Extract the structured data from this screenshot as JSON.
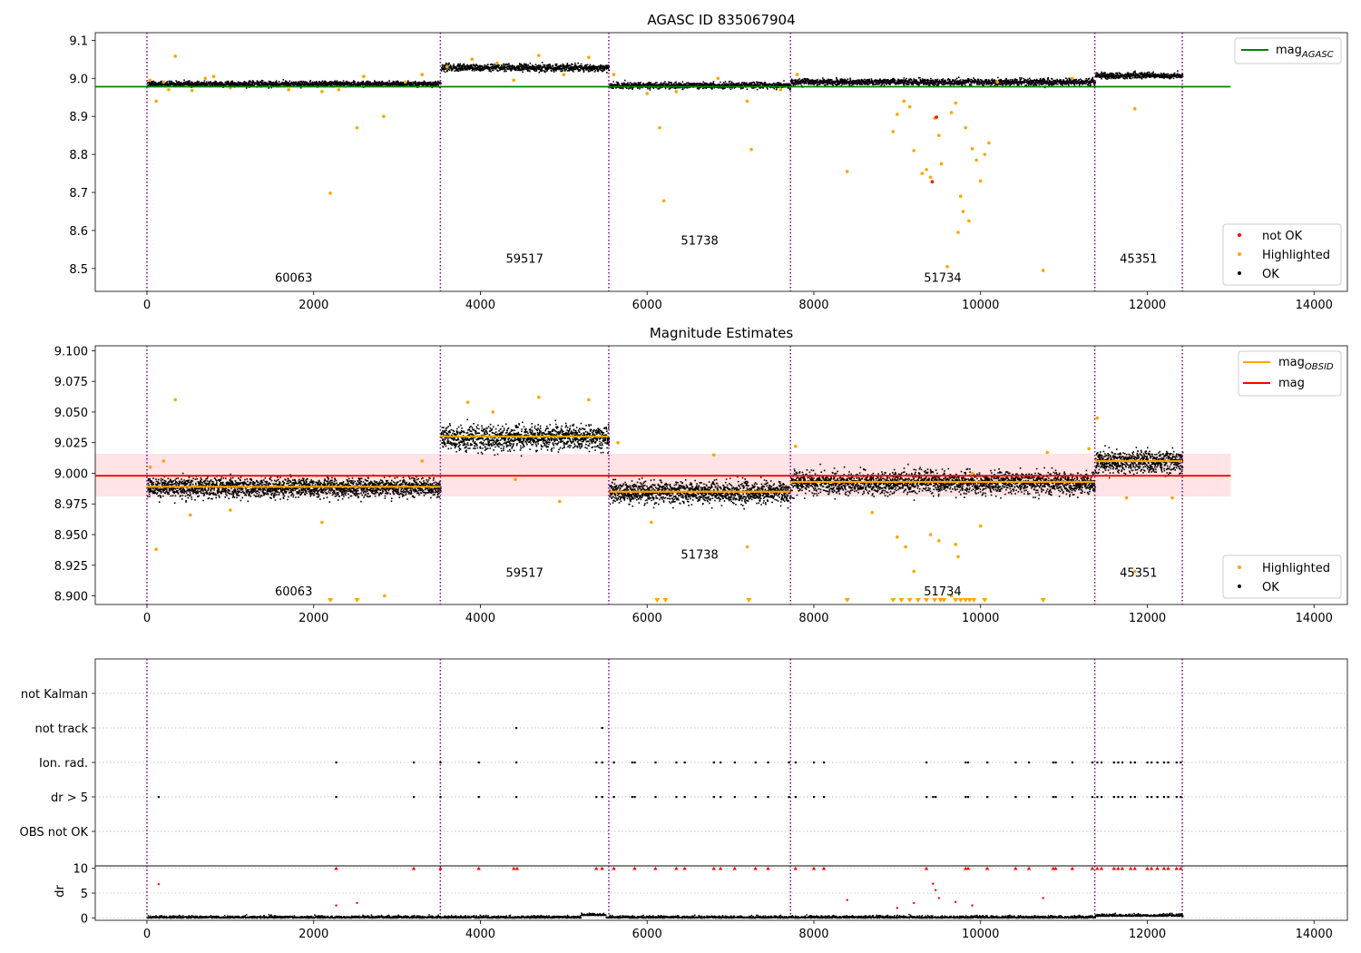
{
  "chart_data": [
    {
      "type": "scatter",
      "title": "AGASC ID 835067904",
      "xlim": [
        -620,
        14400
      ],
      "ylim": [
        8.44,
        9.12
      ],
      "xticks": [
        0,
        2000,
        4000,
        6000,
        8000,
        10000,
        12000,
        14000
      ],
      "yticks": [
        8.5,
        8.6,
        8.7,
        8.8,
        8.9,
        9.0,
        9.1
      ],
      "colors": {
        "ok": "#000000",
        "highlighted": "#ffa500",
        "not_ok": "#ff0000",
        "mag_agasc": "#008000",
        "boundary": "#800080"
      },
      "mag_agasc": 8.978,
      "mag_agasc_x": [
        -620,
        13000
      ],
      "legend_top": [
        {
          "label": "mag",
          "sub": "AGASC",
          "color": "#008000",
          "kind": "line"
        }
      ],
      "legend_bottom": [
        {
          "label": "not OK",
          "color": "#ff0000",
          "kind": "dot"
        },
        {
          "label": "Highlighted",
          "color": "#ffa500",
          "kind": "dot"
        },
        {
          "label": "OK",
          "color": "#000000",
          "kind": "dot"
        }
      ],
      "obsids": [
        {
          "label": "60063",
          "x0": 0,
          "x1": 3520,
          "mean": 8.987,
          "spread": 0.006,
          "label_y": 8.465
        },
        {
          "label": "59517",
          "x0": 3520,
          "x1": 5540,
          "mean": 9.03,
          "spread": 0.008,
          "label_y": 8.515
        },
        {
          "label": "51738",
          "x0": 5540,
          "x1": 7720,
          "mean": 8.983,
          "spread": 0.007,
          "label_y": 8.563
        },
        {
          "label": "51734",
          "x0": 7720,
          "x1": 11370,
          "mean": 8.992,
          "spread": 0.007,
          "label_y": 8.465
        },
        {
          "label": "45351",
          "x0": 11370,
          "x1": 12420,
          "mean": 9.009,
          "spread": 0.006,
          "label_y": 8.515
        }
      ],
      "boundaries": [
        0,
        3520,
        5540,
        7720,
        11370,
        12420
      ],
      "highlighted_points": [
        [
          35,
          8.995
        ],
        [
          110,
          8.94
        ],
        [
          200,
          8.99
        ],
        [
          260,
          8.97
        ],
        [
          340,
          9.058
        ],
        [
          540,
          8.968
        ],
        [
          700,
          9.0
        ],
        [
          800,
          9.005
        ],
        [
          1000,
          8.975
        ],
        [
          1700,
          8.97
        ],
        [
          2100,
          8.965
        ],
        [
          2200,
          8.698
        ],
        [
          2300,
          8.97
        ],
        [
          2520,
          8.87
        ],
        [
          2600,
          9.005
        ],
        [
          2840,
          8.9
        ],
        [
          3100,
          8.99
        ],
        [
          3300,
          9.01
        ],
        [
          3600,
          9.03
        ],
        [
          3900,
          9.05
        ],
        [
          4200,
          9.04
        ],
        [
          4400,
          8.995
        ],
        [
          4700,
          9.06
        ],
        [
          5000,
          9.01
        ],
        [
          5300,
          9.055
        ],
        [
          5600,
          9.01
        ],
        [
          6000,
          8.96
        ],
        [
          6150,
          8.87
        ],
        [
          6200,
          8.678
        ],
        [
          6350,
          8.965
        ],
        [
          6850,
          9.0
        ],
        [
          7200,
          8.94
        ],
        [
          7250,
          8.813
        ],
        [
          7600,
          8.97
        ],
        [
          7800,
          9.01
        ],
        [
          8400,
          8.755
        ],
        [
          8950,
          8.86
        ],
        [
          9000,
          8.905
        ],
        [
          9080,
          8.94
        ],
        [
          9150,
          8.925
        ],
        [
          9200,
          8.81
        ],
        [
          9300,
          8.75
        ],
        [
          9350,
          8.76
        ],
        [
          9400,
          8.74
        ],
        [
          9450,
          8.895
        ],
        [
          9500,
          8.85
        ],
        [
          9530,
          8.775
        ],
        [
          9600,
          8.505
        ],
        [
          9650,
          8.91
        ],
        [
          9700,
          8.935
        ],
        [
          9730,
          8.595
        ],
        [
          9760,
          8.69
        ],
        [
          9790,
          8.65
        ],
        [
          9820,
          8.87
        ],
        [
          9860,
          8.625
        ],
        [
          9900,
          8.815
        ],
        [
          9950,
          8.785
        ],
        [
          10000,
          8.73
        ],
        [
          10050,
          8.8
        ],
        [
          10100,
          8.83
        ],
        [
          10200,
          8.99
        ],
        [
          10750,
          8.495
        ],
        [
          11100,
          9.0
        ],
        [
          11850,
          8.92
        ]
      ],
      "not_ok_points": [
        [
          9420,
          8.728
        ],
        [
          9470,
          8.898
        ]
      ]
    },
    {
      "type": "scatter",
      "title": "Magnitude Estimates",
      "xlim": [
        -620,
        14400
      ],
      "ylim": [
        8.893,
        9.104
      ],
      "xticks": [
        0,
        2000,
        4000,
        6000,
        8000,
        10000,
        12000,
        14000
      ],
      "yticks": [
        8.9,
        8.925,
        8.95,
        8.975,
        9.0,
        9.025,
        9.05,
        9.075,
        9.1
      ],
      "ytick_labels": [
        "8.900",
        "8.925",
        "8.950",
        "8.975",
        "9.000",
        "9.025",
        "9.050",
        "9.075",
        "9.100"
      ],
      "mag": 8.998,
      "mag_band": [
        8.981,
        9.016
      ],
      "mag_x": [
        -620,
        13000
      ],
      "colors": {
        "mag": "#ff0000",
        "mag_obsid": "#ffa500",
        "band": "#ffc0c8",
        "ok": "#000000",
        "highlighted": "#ffa500"
      },
      "legend_top": [
        {
          "label": "mag",
          "sub": "OBSID",
          "color": "#ffa500",
          "kind": "line"
        },
        {
          "label": "mag",
          "sub": "",
          "color": "#ff0000",
          "kind": "line"
        }
      ],
      "legend_bottom": [
        {
          "label": "Highlighted",
          "color": "#ffa500",
          "kind": "dot"
        },
        {
          "label": "OK",
          "color": "#000000",
          "kind": "dot"
        }
      ],
      "obsids": [
        {
          "label": "60063",
          "x0": 0,
          "x1": 3520,
          "mean": 8.989,
          "spread": 0.0065,
          "label_y": 8.9005
        },
        {
          "label": "59517",
          "x0": 3520,
          "x1": 5540,
          "mean": 9.03,
          "spread": 0.0085,
          "label_y": 8.9155
        },
        {
          "label": "51738",
          "x0": 5540,
          "x1": 7720,
          "mean": 8.985,
          "spread": 0.0075,
          "label_y": 8.9305
        },
        {
          "label": "51734",
          "x0": 7720,
          "x1": 11370,
          "mean": 8.993,
          "spread": 0.0075,
          "label_y": 8.9005
        },
        {
          "label": "45351",
          "x0": 11370,
          "x1": 12420,
          "mean": 9.01,
          "spread": 0.0075,
          "label_y": 8.9155
        }
      ],
      "boundaries": [
        0,
        3520,
        5540,
        7720,
        11370,
        12420
      ],
      "highlighted_points": [
        [
          40,
          9.005
        ],
        [
          110,
          8.938
        ],
        [
          200,
          9.01
        ],
        [
          340,
          9.06
        ],
        [
          520,
          8.966
        ],
        [
          1000,
          8.97
        ],
        [
          2100,
          8.96
        ],
        [
          2850,
          8.9
        ],
        [
          3300,
          9.01
        ],
        [
          3850,
          9.058
        ],
        [
          4150,
          9.05
        ],
        [
          4420,
          8.995
        ],
        [
          4700,
          9.062
        ],
        [
          4950,
          8.977
        ],
        [
          5300,
          9.06
        ],
        [
          5650,
          9.025
        ],
        [
          6050,
          8.96
        ],
        [
          6800,
          9.015
        ],
        [
          7200,
          8.94
        ],
        [
          7780,
          9.022
        ],
        [
          8700,
          8.968
        ],
        [
          9000,
          8.948
        ],
        [
          9100,
          8.94
        ],
        [
          9200,
          8.92
        ],
        [
          9400,
          8.95
        ],
        [
          9500,
          8.945
        ],
        [
          9650,
          8.9
        ],
        [
          9700,
          8.942
        ],
        [
          9730,
          8.932
        ],
        [
          9900,
          9.0
        ],
        [
          10000,
          8.957
        ],
        [
          10800,
          9.017
        ],
        [
          11300,
          9.02
        ],
        [
          11400,
          9.045
        ],
        [
          11750,
          8.98
        ],
        [
          11850,
          8.92
        ],
        [
          12300,
          8.98
        ]
      ],
      "low_markers": [
        2200,
        2520,
        6120,
        6220,
        7220,
        8400,
        8950,
        9050,
        9150,
        9250,
        9350,
        9450,
        9520,
        9560,
        9700,
        9760,
        9820,
        9870,
        9920,
        10050,
        10750
      ]
    },
    {
      "type": "scatter",
      "categories": [
        "not Kalman",
        "not track",
        "Ion. rad.",
        "dr > 5",
        "OBS not OK"
      ],
      "xlim": [
        -620,
        14400
      ],
      "xticks": [
        0,
        2000,
        4000,
        6000,
        8000,
        10000,
        12000,
        14000
      ],
      "boundaries": [
        0,
        3520,
        5540,
        7720,
        11370,
        12420
      ],
      "not_track_x": [
        4430,
        5460
      ],
      "ion_rad_x": [
        2270,
        3200,
        3520,
        3980,
        4430,
        5390,
        5460,
        5600,
        5820,
        5850,
        6100,
        6350,
        6450,
        6800,
        6880,
        7050,
        7300,
        7450,
        7700,
        7780,
        8000,
        8120,
        9350,
        9820,
        9850,
        10080,
        10420,
        10580,
        10870,
        10900,
        11100,
        11340,
        11400,
        11450,
        11600,
        11650,
        11700,
        11800,
        11850,
        12000,
        12050,
        12120,
        12200,
        12250,
        12350,
        12400
      ],
      "dr_gt5_x": [
        140,
        2270,
        3200,
        3520,
        3980,
        4430,
        5390,
        5460,
        5600,
        5820,
        5850,
        6100,
        6350,
        6450,
        6800,
        6880,
        7050,
        7300,
        7450,
        7700,
        7780,
        8000,
        8120,
        9350,
        9430,
        9460,
        9820,
        9850,
        10080,
        10420,
        10580,
        10870,
        10900,
        11100,
        11340,
        11400,
        11450,
        11600,
        11650,
        11700,
        11800,
        11850,
        12000,
        12050,
        12120,
        12200,
        12250,
        12350,
        12400
      ]
    },
    {
      "type": "scatter",
      "ylabel": "dr",
      "xlim": [
        -620,
        14400
      ],
      "ylim": [
        -0.5,
        10.5
      ],
      "xticks": [
        0,
        2000,
        4000,
        6000,
        8000,
        10000,
        12000,
        14000
      ],
      "yticks": [
        0,
        5,
        10
      ],
      "boundaries": [
        0,
        3520,
        5540,
        7720,
        11370,
        12420
      ],
      "capped_x": [
        2270,
        3200,
        3520,
        3980,
        4400,
        4440,
        5390,
        5460,
        5600,
        5850,
        6100,
        6350,
        6450,
        6800,
        6880,
        7050,
        7300,
        7450,
        7780,
        8000,
        8120,
        9350,
        9820,
        9850,
        10080,
        10420,
        10580,
        10870,
        10900,
        11100,
        11340,
        11400,
        11450,
        11600,
        11650,
        11700,
        11800,
        11850,
        12000,
        12050,
        12120,
        12200,
        12250,
        12350,
        12400
      ],
      "outliers": [
        [
          140,
          6.8
        ],
        [
          2270,
          2.5
        ],
        [
          2520,
          3.0
        ],
        [
          9430,
          6.9
        ],
        [
          9460,
          5.6
        ],
        [
          9500,
          4.0
        ],
        [
          8400,
          3.6
        ],
        [
          9200,
          3.0
        ],
        [
          9700,
          3.2
        ],
        [
          10750,
          4.0
        ],
        [
          9900,
          2.5
        ],
        [
          9000,
          2.0
        ]
      ]
    }
  ]
}
